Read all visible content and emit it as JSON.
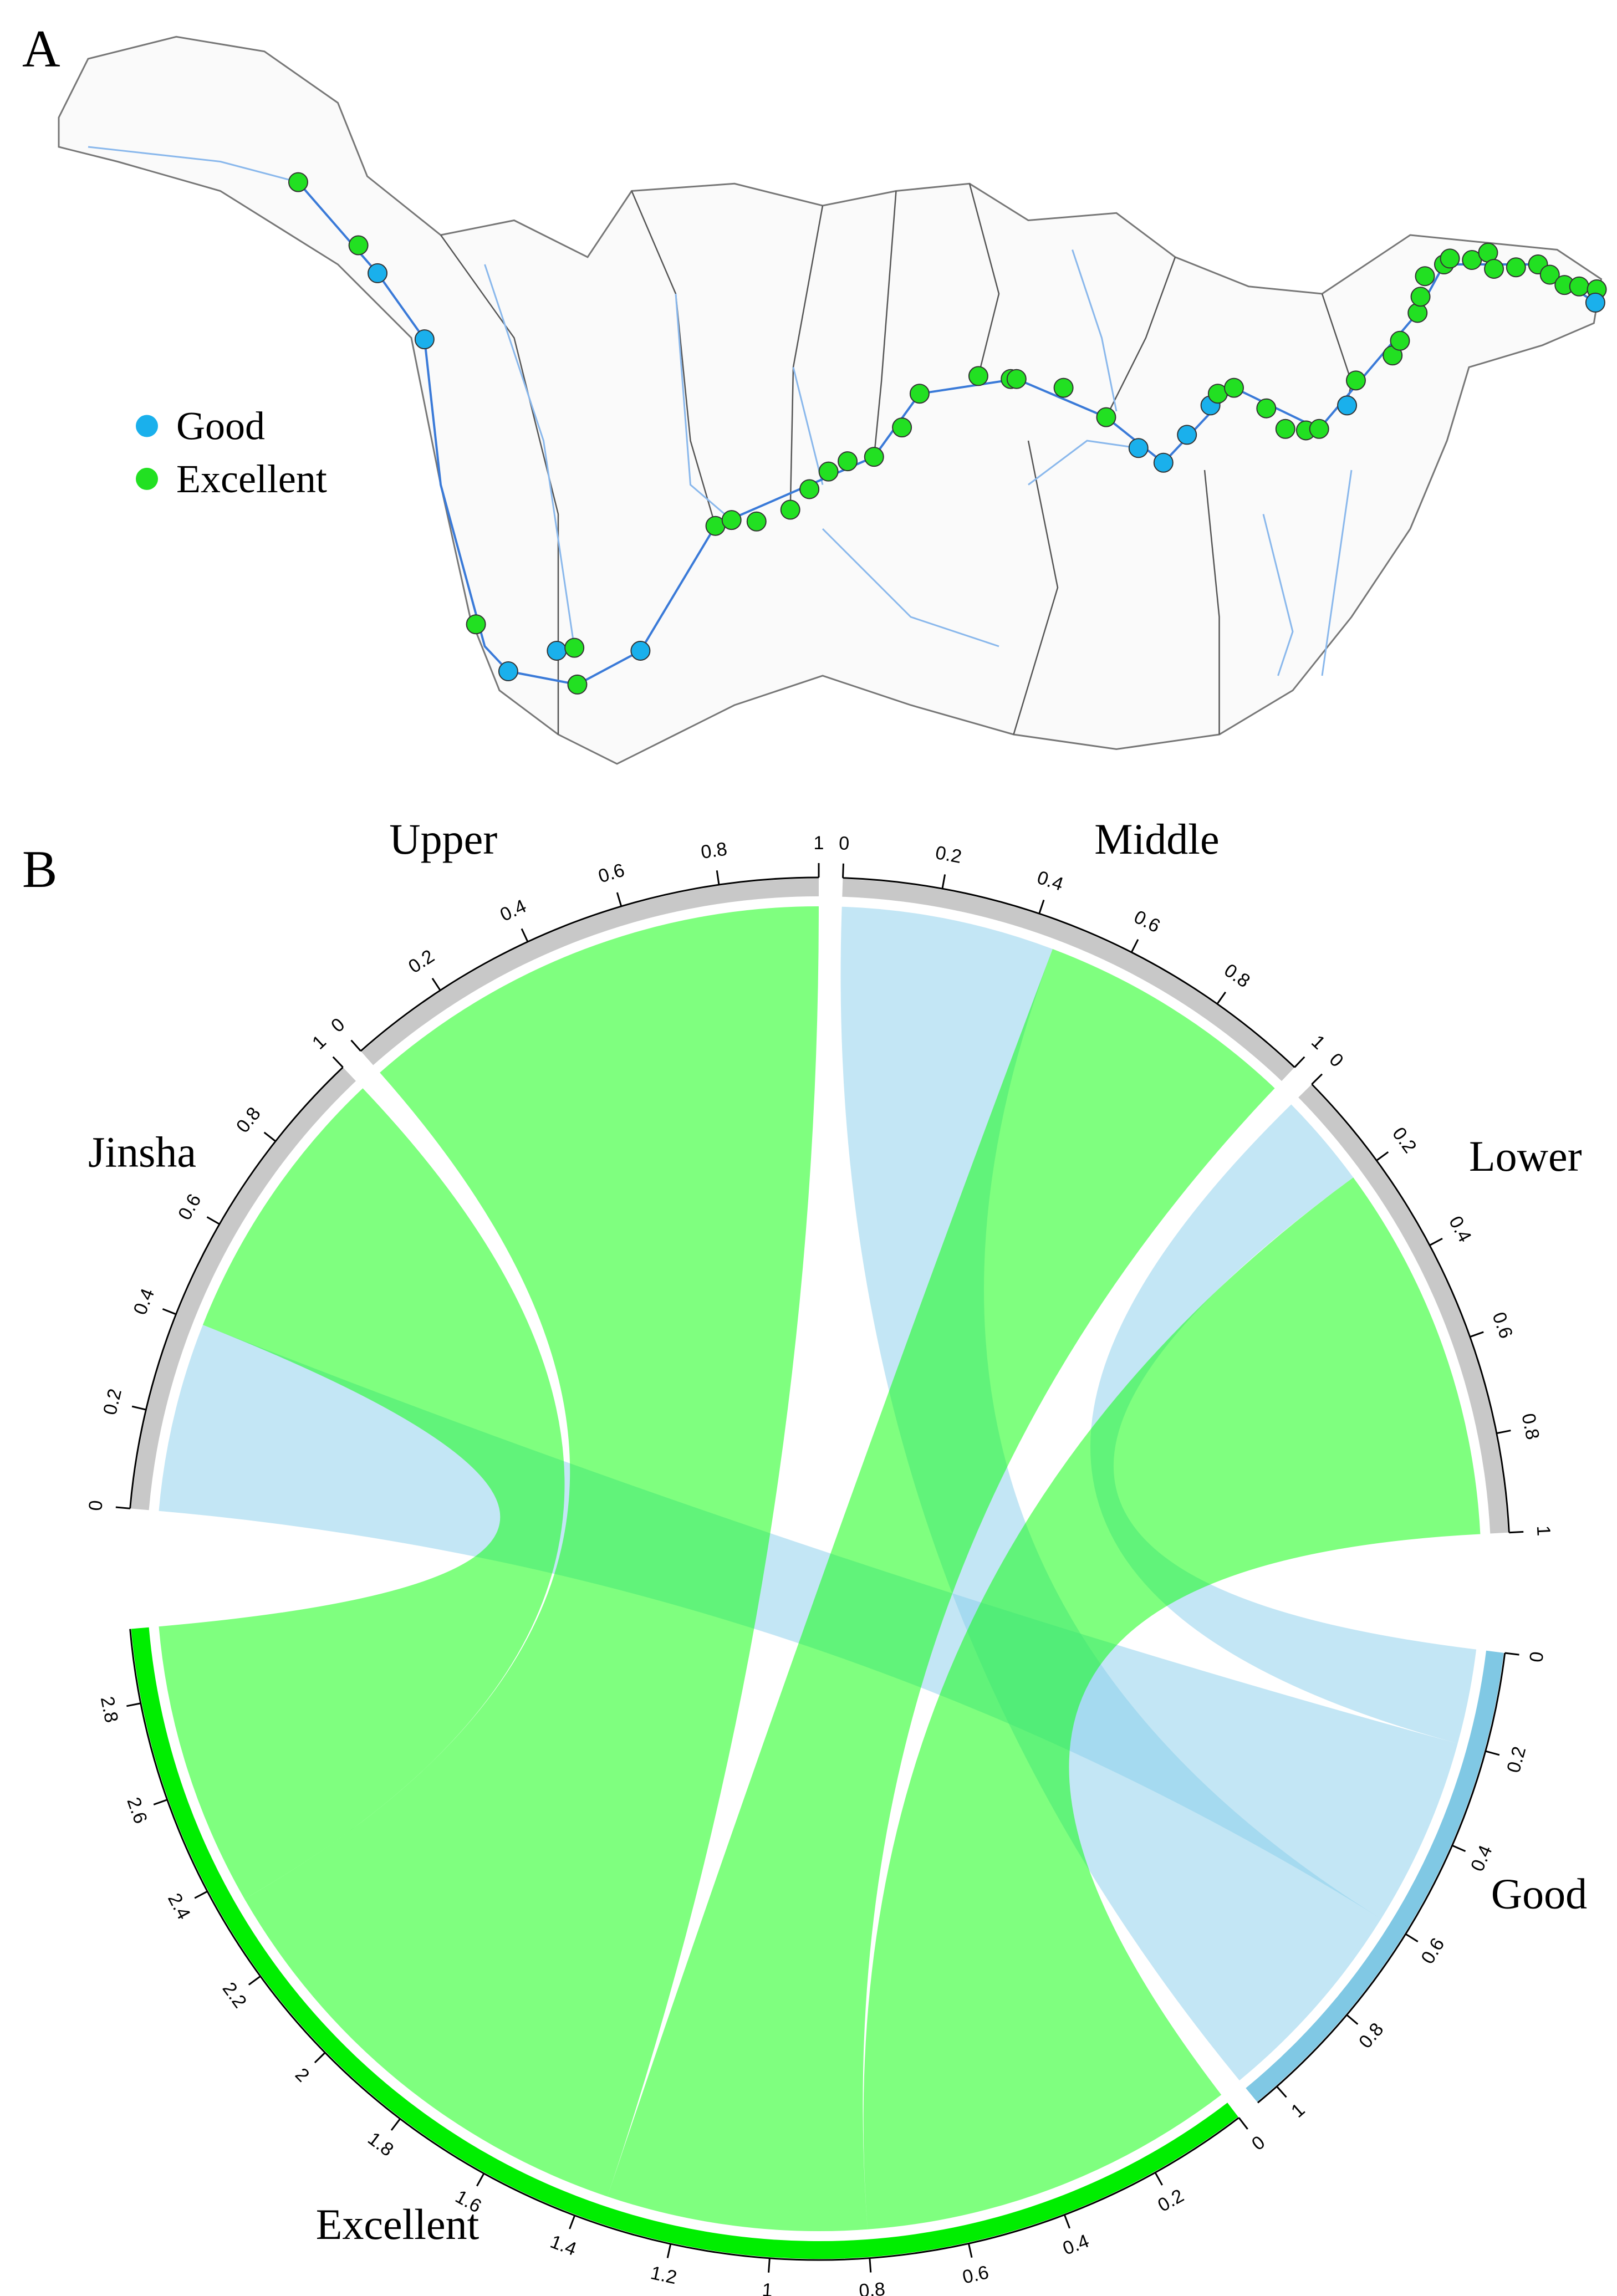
{
  "panels": {
    "a": "A",
    "b": "B"
  },
  "map": {
    "legend": [
      {
        "name": "Good",
        "color": "#1ab0ec"
      },
      {
        "name": "Excellent",
        "color": "#22e022"
      }
    ]
  },
  "chart_data": {
    "type": "chord",
    "sectors": [
      {
        "name": "Jinsha",
        "color": "#c8c8c8",
        "ticks": [
          0,
          0.2,
          0.4,
          0.6,
          0.8,
          1
        ]
      },
      {
        "name": "Upper",
        "color": "#c8c8c8",
        "ticks": [
          0,
          0.2,
          0.4,
          0.6,
          0.8,
          1
        ]
      },
      {
        "name": "Middle",
        "color": "#c8c8c8",
        "ticks": [
          0,
          0.2,
          0.4,
          0.6,
          0.8,
          1
        ]
      },
      {
        "name": "Lower",
        "color": "#c8c8c8",
        "ticks": [
          0,
          0.2,
          0.4,
          0.6,
          0.8,
          1
        ]
      },
      {
        "name": "Good",
        "color": "#80c8e4",
        "ticks": [
          0,
          0.2,
          0.4,
          0.6,
          0.8,
          1
        ]
      },
      {
        "name": "Excellent",
        "color": "#00ee00",
        "ticks": [
          0,
          0.2,
          0.4,
          0.6,
          0.8,
          1,
          1.2,
          1.4,
          1.6,
          1.8,
          2,
          2.2,
          2.4,
          2.6,
          2.8
        ]
      }
    ],
    "links": [
      {
        "source": "Lower",
        "target": "Good",
        "value": 0.2,
        "color": "#87ceeb"
      },
      {
        "source": "Jinsha",
        "target": "Good",
        "value": 0.4,
        "color": "#87ceeb"
      },
      {
        "source": "Middle",
        "target": "Good",
        "value": 0.45,
        "color": "#87ceeb"
      },
      {
        "source": "Lower",
        "target": "Excellent",
        "value": 0.8,
        "color": "#00ff00"
      },
      {
        "source": "Middle",
        "target": "Excellent",
        "value": 0.55,
        "color": "#00ff00"
      },
      {
        "source": "Upper",
        "target": "Excellent",
        "value": 1,
        "color": "#00ff00"
      },
      {
        "source": "Jinsha",
        "target": "Excellent",
        "value": 0.6,
        "color": "#00ff00"
      }
    ]
  }
}
